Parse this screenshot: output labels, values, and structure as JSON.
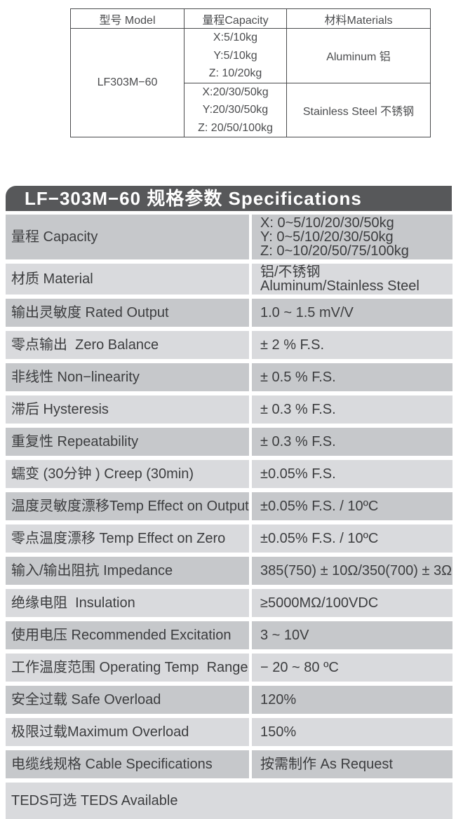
{
  "colors": {
    "title_bar_bg": "#57585a",
    "row_dark": "#c6c8cb",
    "row_light": "#d9dadd",
    "table_border": "#4a4b4d",
    "table_text": "#4b4c4e",
    "spec_text": "#3c3d3f"
  },
  "top_table": {
    "headers": [
      "型号 Model",
      "量程Capacity",
      "材料Materials"
    ],
    "model": "LF303M−60",
    "groups": [
      {
        "capacity_lines": [
          "X:5/10kg",
          "Y:5/10kg",
          "Z: 10/20kg"
        ],
        "material": "Aluminum 铝"
      },
      {
        "capacity_lines": [
          "X:20/30/50kg",
          "Y:20/30/50kg",
          "Z: 20/50/100kg"
        ],
        "material": "Stainless Steel 不锈钢"
      }
    ]
  },
  "spec": {
    "title": "LF−303M−60 规格参数 Specifications",
    "rows": [
      {
        "label": "量程 Capacity",
        "value_lines": [
          "X: 0~5/10/20/30/50kg",
          "Y: 0~5/10/20/30/50kg",
          "Z: 0~10/20/50/75/100kg"
        ]
      },
      {
        "label": "材质 Material",
        "value_lines": [
          "铝/不锈钢",
          "Aluminum/Stainless Steel"
        ]
      },
      {
        "label": "输出灵敏度 Rated Output",
        "value_lines": [
          "1.0 ~ 1.5 mV/V"
        ]
      },
      {
        "label": "零点输出  Zero Balance",
        "value_lines": [
          "± 2 % F.S."
        ]
      },
      {
        "label": "非线性 Non−linearity",
        "value_lines": [
          "± 0.5 % F.S."
        ]
      },
      {
        "label": "滞后 Hysteresis",
        "value_lines": [
          "± 0.3 % F.S."
        ]
      },
      {
        "label": "重复性 Repeatability",
        "value_lines": [
          "± 0.3 % F.S."
        ]
      },
      {
        "label": "蠕变 (30分钟 ) Creep (30min)",
        "value_lines": [
          "±0.05% F.S."
        ]
      },
      {
        "label": "温度灵敏度漂移Temp Effect on Output",
        "value_lines": [
          "±0.05% F.S. / 10ºC"
        ]
      },
      {
        "label": "零点温度漂移 Temp Effect on Zero",
        "value_lines": [
          "±0.05% F.S. / 10ºC"
        ]
      },
      {
        "label": "输入/输出阻抗 Impedance",
        "value_lines": [
          "385(750) ± 10Ω/350(700) ± 3Ω"
        ]
      },
      {
        "label": "绝缘电阻  Insulation",
        "value_lines": [
          "≥5000MΩ/100VDC"
        ]
      },
      {
        "label": "使用电压 Recommended Excitation",
        "value_lines": [
          "3 ~ 10V"
        ]
      },
      {
        "label": "工作温度范围 Operating Temp  Range",
        "value_lines": [
          "− 20 ~ 80 ºC"
        ]
      },
      {
        "label": "安全过载 Safe Overload",
        "value_lines": [
          "120%"
        ]
      },
      {
        "label": "极限过载Maximum Overload",
        "value_lines": [
          "150%"
        ]
      },
      {
        "label": "电缆线规格 Cable Specifications",
        "value_lines": [
          "按需制作 As Request"
        ]
      },
      {
        "label": "TEDS可选 TEDS Available",
        "value_lines": [],
        "full_width": true
      }
    ]
  }
}
